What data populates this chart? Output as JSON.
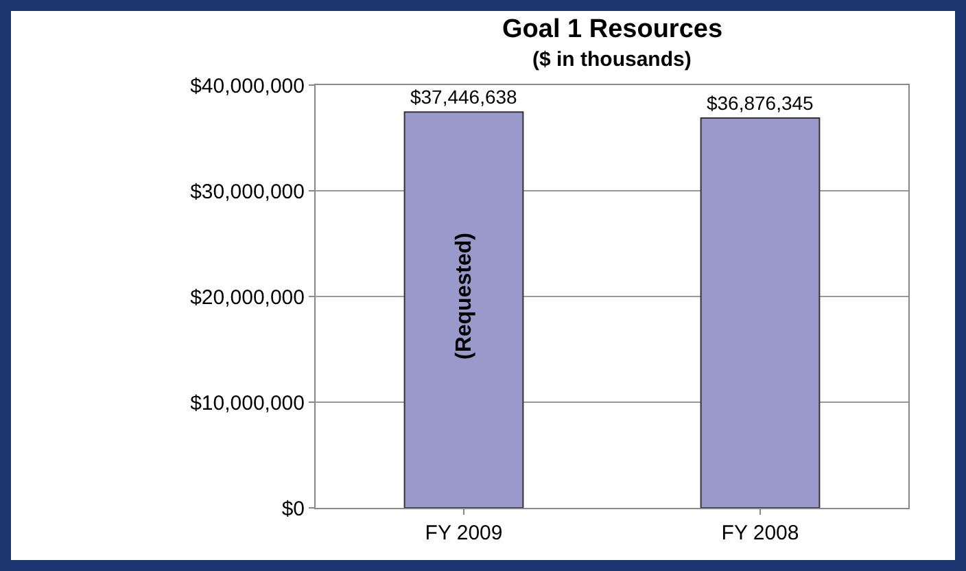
{
  "chart_data": {
    "type": "bar",
    "title": "Goal 1 Resources",
    "subtitle": "($ in thousands)",
    "categories": [
      "FY 2009",
      "FY 2008"
    ],
    "values": [
      37446638,
      36876345
    ],
    "value_labels": [
      "$37,446,638",
      "$36,876,345"
    ],
    "color": "#9999cc",
    "ylim": [
      0,
      40000000
    ],
    "yticks": [
      {
        "value": 0,
        "label": "$0"
      },
      {
        "value": 10000000,
        "label": "$10,000,000"
      },
      {
        "value": 20000000,
        "label": "$20,000,000"
      },
      {
        "value": 30000000,
        "label": "$30,000,000"
      },
      {
        "value": 40000000,
        "label": "$40,000,000"
      }
    ],
    "grid": "y",
    "legend": false,
    "annotations": [
      "(Requested)"
    ]
  }
}
